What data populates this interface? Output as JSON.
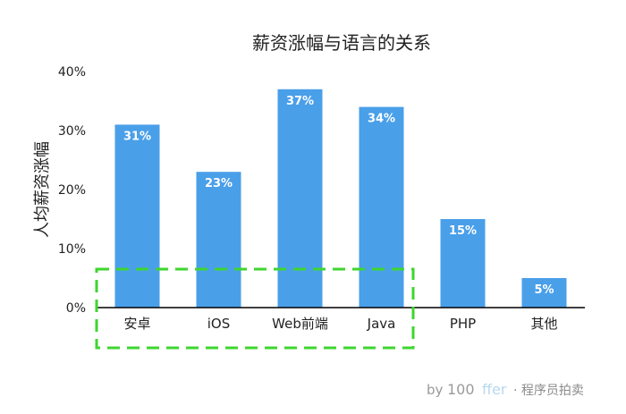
{
  "chart_data": {
    "type": "bar",
    "title": "薪资涨幅与语言的关系",
    "xlabel": "",
    "ylabel": "人均薪资涨幅",
    "categories": [
      "安卓",
      "iOS",
      "Web前端",
      "Java",
      "PHP",
      "其他"
    ],
    "values": [
      31,
      23,
      37,
      34,
      15,
      5
    ],
    "data_labels": [
      "31%",
      "23%",
      "37%",
      "34%",
      "15%",
      "5%"
    ],
    "ylim": [
      0,
      40
    ],
    "y_ticks": [
      "0%",
      "10%",
      "20%",
      "30%",
      "40%"
    ],
    "grid": false,
    "legend": "none",
    "bar_color": "#4a9fe9",
    "highlight": {
      "categories": [
        "安卓",
        "iOS",
        "Web前端",
        "Java"
      ],
      "style": "dashed-box",
      "color": "#3ed62f"
    }
  },
  "watermark": {
    "by": "by",
    "brand_number": "100",
    "brand_word": "ffer",
    "tail": "· 程序员拍卖"
  }
}
